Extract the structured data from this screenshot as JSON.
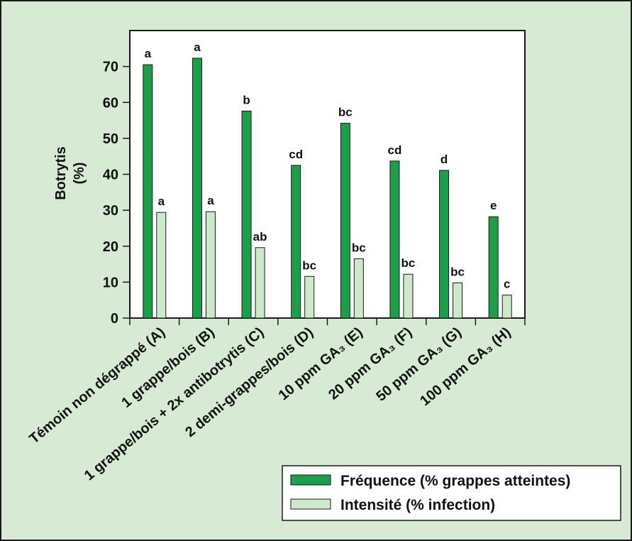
{
  "chart_data": {
    "type": "bar",
    "ylabel": [
      "Botrytis",
      "(%)"
    ],
    "xlabel": "",
    "ylim": [
      0,
      80
    ],
    "yticks": [
      0,
      10,
      20,
      30,
      40,
      50,
      60,
      70
    ],
    "grid": false,
    "legend_placement": "bottom-right",
    "categories": [
      "Témoin non dégrappé (A)",
      "1 grappe/bois (B)",
      "1 grappe/bois + 2x antibotrytis (C)",
      "2 demi-grappes/bois (D)",
      "10 ppm GA₃ (E)",
      "20 ppm GA₃ (F)",
      "50 ppm GA₃ (G)",
      "100 ppm GA₃ (H)"
    ],
    "series": [
      {
        "name": "Fréquence (% grappes atteintes)",
        "color": "#1d9e4b",
        "values": [
          70.5,
          72.3,
          57.6,
          42.5,
          54.2,
          43.7,
          41.1,
          28.2
        ],
        "labels": [
          "a",
          "a",
          "b",
          "cd",
          "bc",
          "cd",
          "d",
          "e"
        ]
      },
      {
        "name": "Intensité (% infection)",
        "color": "#cde9cb",
        "values": [
          29.4,
          29.6,
          19.6,
          11.6,
          16.5,
          12.2,
          9.8,
          6.4
        ],
        "labels": [
          "a",
          "a",
          "ab",
          "bc",
          "bc",
          "bc",
          "bc",
          "c"
        ]
      }
    ]
  }
}
